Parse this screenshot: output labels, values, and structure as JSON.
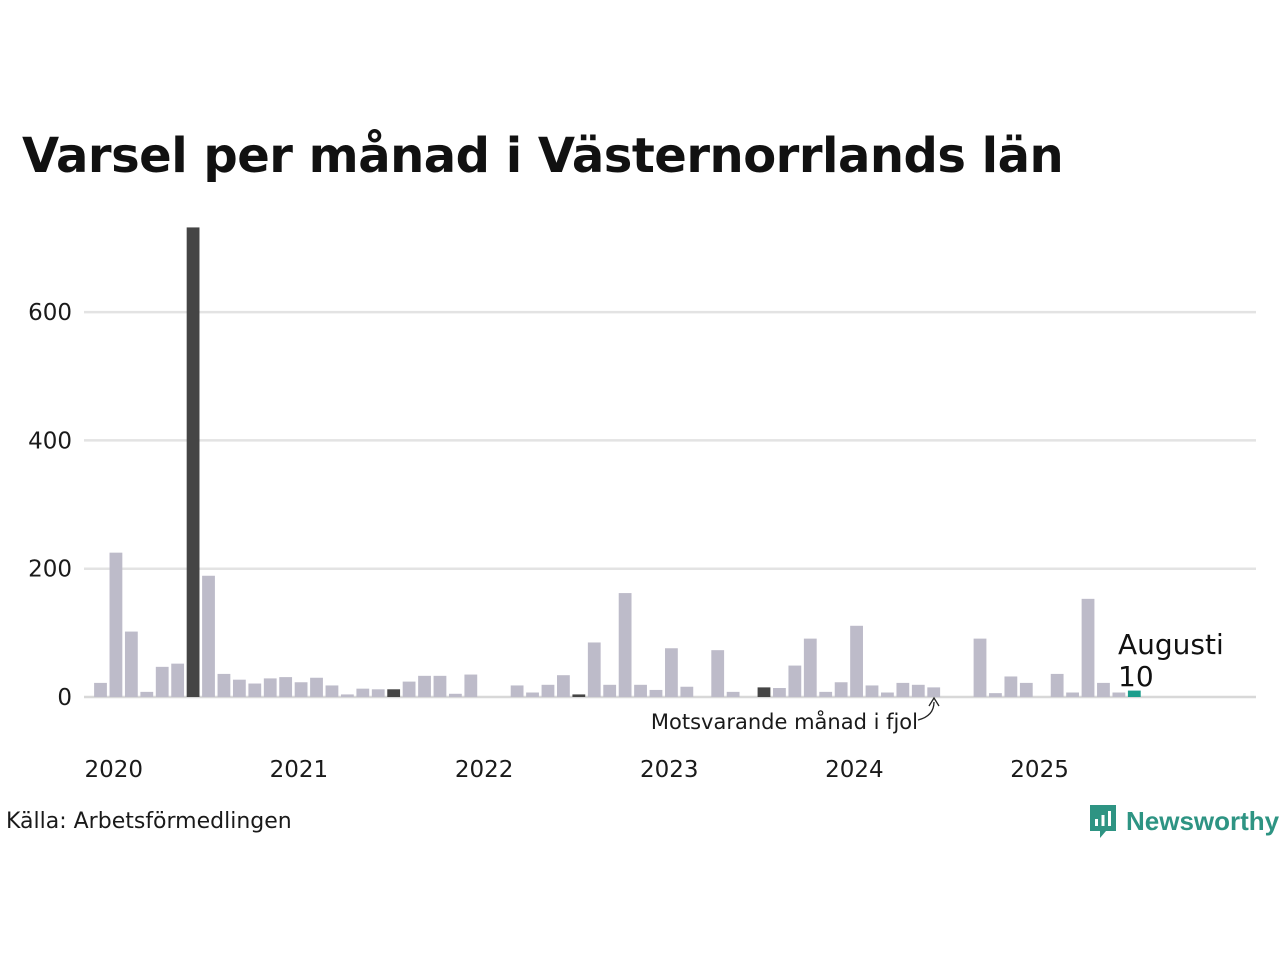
{
  "title": "Varsel per månad i Västernorrlands län",
  "source": "Källa: Arbetsförmedlingen",
  "brand": {
    "name": "Newsworthy",
    "icon": "newsworthy-logo-icon",
    "color": "#2e9483"
  },
  "colors": {
    "bar": "#bdbbc9",
    "highlight": "#454545",
    "latest": "#1c9d8c",
    "grid": "#e3e3e3"
  },
  "chart_data": {
    "type": "bar",
    "title": "Varsel per månad i Västernorrlands län",
    "xlabel": "",
    "ylabel": "",
    "ylim": [
      0,
      760
    ],
    "yticks": [
      0,
      200,
      400,
      600
    ],
    "ytick_labels": [
      "0",
      "200",
      "400",
      "600"
    ],
    "x_tick_labels": [
      "2020",
      "2021",
      "2022",
      "2023",
      "2024",
      "2025"
    ],
    "grid": true,
    "legend": "none",
    "series": [
      {
        "start_month": "2020-01",
        "values": [
          22,
          225,
          102,
          8,
          47,
          52,
          732,
          189,
          36,
          27,
          21,
          29,
          31,
          23,
          30,
          18,
          4,
          13,
          12,
          12,
          24,
          33,
          33,
          5,
          35,
          0,
          0,
          18,
          7,
          19,
          34,
          4,
          85,
          19,
          162,
          19,
          11,
          76,
          16,
          0,
          73,
          8,
          0,
          15,
          14,
          49,
          91,
          8,
          23,
          111,
          18,
          7,
          22,
          19,
          15,
          0,
          0,
          91,
          6,
          32,
          22,
          0,
          36,
          7,
          153,
          22,
          7,
          10
        ],
        "highlight_months": [
          "2020-07",
          "2021-08",
          "2022-08",
          "2023-08",
          "2024-08"
        ],
        "latest_month": "2025-08"
      }
    ],
    "annotations": [
      {
        "text": "Motsvarande månad i fjol",
        "target": "2024-08"
      },
      {
        "text": "Augusti",
        "target": "2025-08"
      },
      {
        "text": "10",
        "target": "2025-08"
      }
    ]
  }
}
